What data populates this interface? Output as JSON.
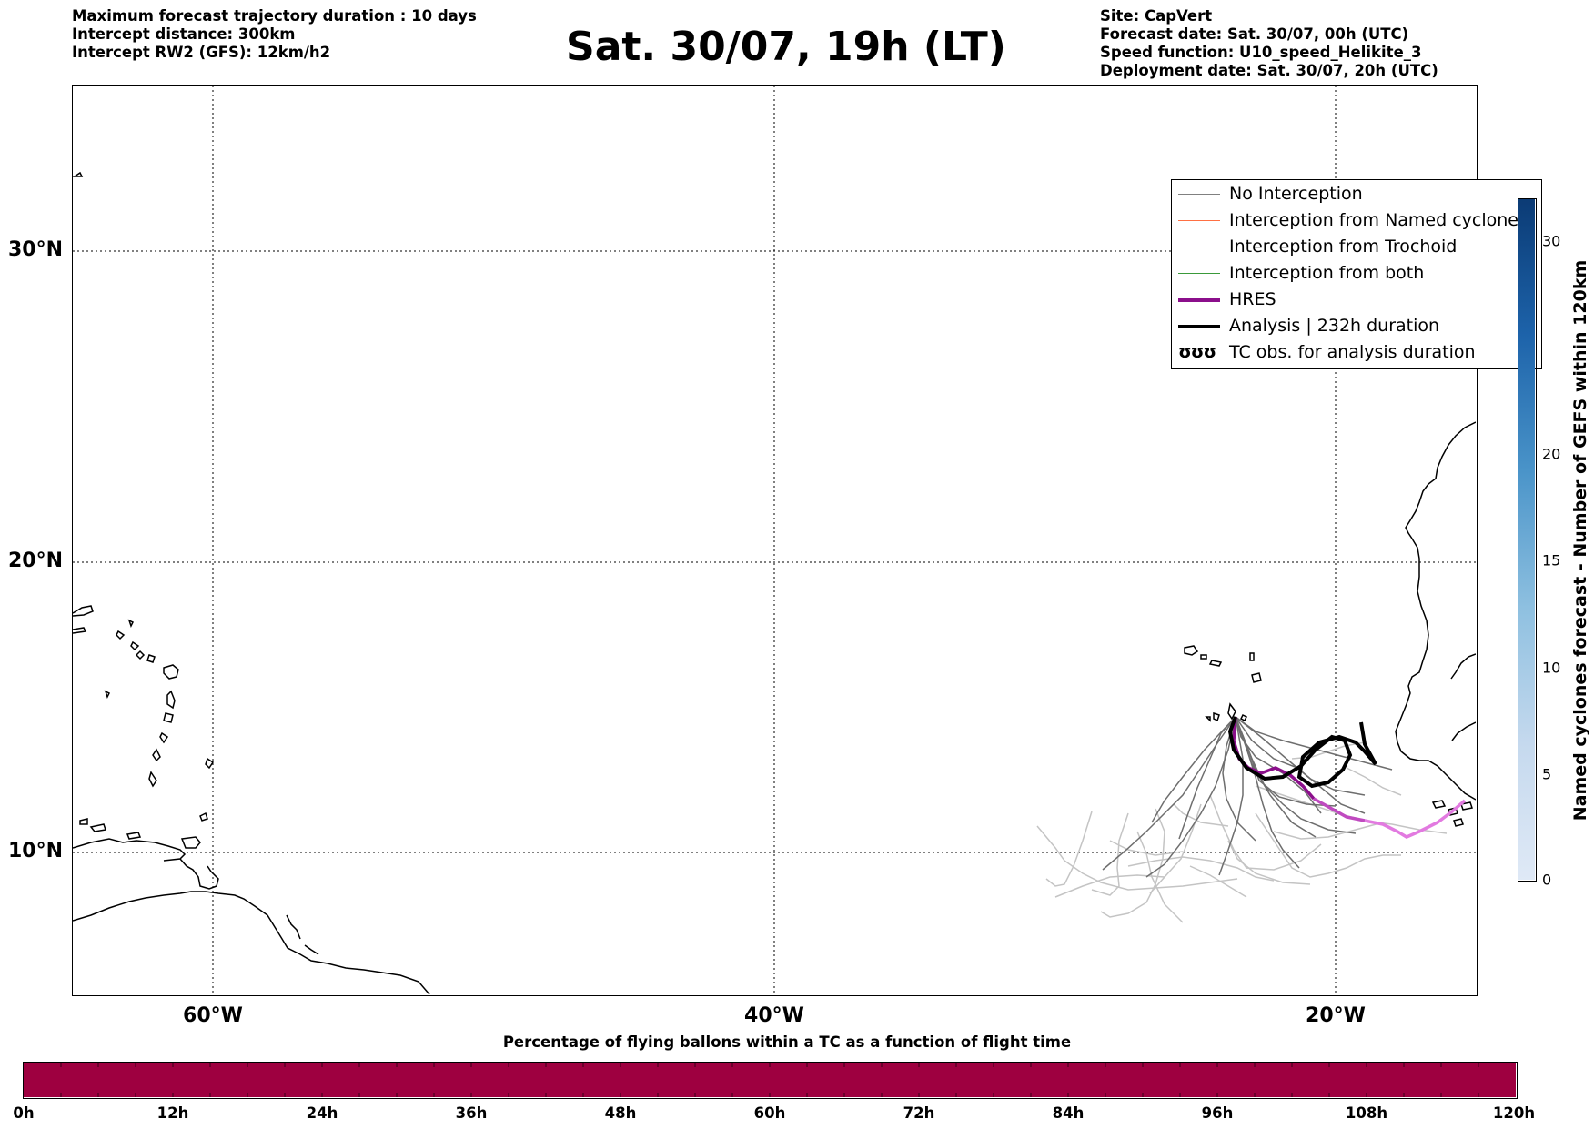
{
  "header": {
    "left": [
      "Maximum forecast trajectory duration : 10 days",
      "Intercept distance: 300km",
      "Intercept RW2 (GFS):  12km/h2"
    ],
    "title": "Sat. 30/07, 19h (LT)",
    "right": [
      "Site: CapVert",
      "Forecast date: Sat. 30/07, 00h (UTC)",
      "Speed function: U10_speed_Helikite_3",
      "Deployment date: Sat. 30/07, 20h (UTC)"
    ]
  },
  "map": {
    "lat_labels": [
      "30°N",
      "20°N",
      "10°N"
    ],
    "lon_labels": [
      "60°W",
      "40°W",
      "20°W"
    ],
    "gridlines": "dotted"
  },
  "legend": {
    "items": [
      {
        "label": "No Interception",
        "color": "#808080",
        "style": "thin"
      },
      {
        "label": "Interception from Named cyclone",
        "color": "#ff7043",
        "style": "thin"
      },
      {
        "label": "Interception from Trochoid",
        "color": "#9a8a3a",
        "style": "thin"
      },
      {
        "label": "Interception from both",
        "color": "#3a9a3a",
        "style": "thin"
      },
      {
        "label": "HRES",
        "color": "#8b0f8b",
        "style": "thick"
      },
      {
        "label": "Analysis | 232h duration",
        "color": "#000000",
        "style": "thick"
      },
      {
        "label": "TC obs. for analysis duration",
        "color": "#000000",
        "style": "symbol",
        "symbol": "ʊʊʊ"
      }
    ]
  },
  "colors": {
    "flight_bar": "#9e0040",
    "hres_early": "#8b0f8b",
    "hres_late": "#e27ae0",
    "ens_dark": "#6e6e6e",
    "ens_light": "#c4c4c4",
    "cbar_top": "#0b3b75",
    "cbar_bottom": "#dfe9f6"
  },
  "flight_colorbar": {
    "title": "Percentage of flying ballons within a TC as a function of flight time",
    "ticks": [
      "0h",
      "12h",
      "24h",
      "36h",
      "48h",
      "60h",
      "72h",
      "84h",
      "96h",
      "108h",
      "120h"
    ]
  },
  "cyclone_colorbar": {
    "label": "Named cyclones forecast - Number of GEFS within 120km",
    "ticks": [
      "0",
      "5",
      "10",
      "15",
      "20",
      "30"
    ]
  }
}
